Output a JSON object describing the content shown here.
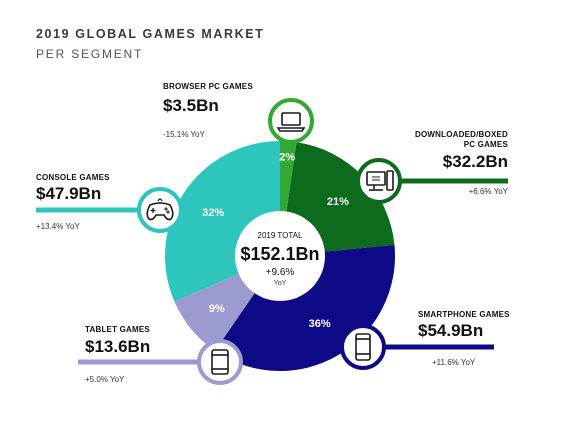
{
  "title": "2019 GLOBAL GAMES MARKET",
  "subtitle": "PER SEGMENT",
  "chart_data": {
    "type": "pie",
    "variant": "donut",
    "title": "2019 GLOBAL GAMES MARKET",
    "subtitle": "PER SEGMENT",
    "total": {
      "caption": "2019 TOTAL",
      "value": "$152.1Bn",
      "growth": "+9.6%",
      "growth_unit": "YoY"
    },
    "segments": [
      {
        "key": "browser",
        "name": "BROWSER PC GAMES",
        "value": 3.5,
        "value_label": "$3.5Bn",
        "share": 2,
        "share_label": "2%",
        "yoy": "-15.1% YoY",
        "color": "#33a832",
        "icon": "laptop-icon"
      },
      {
        "key": "downloaded",
        "name": "DOWNLOADED/BOXED PC GAMES",
        "name_line1": "DOWNLOADED/BOXED",
        "name_line2": "PC GAMES",
        "value": 32.2,
        "value_label": "$32.2Bn",
        "share": 21,
        "share_label": "21%",
        "yoy": "+6.6% YoY",
        "color": "#0d6b1d",
        "icon": "desktop-pc-icon"
      },
      {
        "key": "smartphone",
        "name": "SMARTPHONE GAMES",
        "value": 54.9,
        "value_label": "$54.9Bn",
        "share": 36,
        "share_label": "36%",
        "yoy": "+11.6% YoY",
        "color": "#0e0a85",
        "icon": "smartphone-icon"
      },
      {
        "key": "tablet",
        "name": "TABLET GAMES",
        "value": 13.6,
        "value_label": "$13.6Bn",
        "share": 9,
        "share_label": "9%",
        "yoy": "+5.0% YoY",
        "color": "#9b9bd0",
        "icon": "tablet-icon"
      },
      {
        "key": "console",
        "name": "CONSOLE GAMES",
        "value": 47.9,
        "value_label": "$47.9Bn",
        "share": 32,
        "share_label": "32%",
        "yoy": "+13.4% YoY",
        "color": "#2ec5bd",
        "icon": "gamepad-icon"
      }
    ]
  }
}
